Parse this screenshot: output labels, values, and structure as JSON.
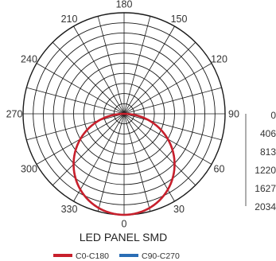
{
  "chart_data": {
    "type": "polar",
    "title": "LED PANEL SMD",
    "angle_labels": [
      "0",
      "30",
      "60",
      "90",
      "120",
      "150",
      "180",
      "210",
      "240",
      "270",
      "300",
      "330"
    ],
    "radial_scale": {
      "labels": [
        "0",
        "406",
        "813",
        "1220",
        "1627",
        "2034"
      ],
      "min": 0,
      "max": 2034
    },
    "rings": 10,
    "spokes_every_deg": 15,
    "grid": true,
    "legend_position": "bottom",
    "series": [
      {
        "name": "C0-C180",
        "color": "#c8202c",
        "peak_intensity": 2034,
        "distribution": "lambertian-cosine"
      },
      {
        "name": "C90-C270",
        "color": "#2a6db5",
        "peak_intensity": 2034,
        "distribution": "lambertian-cosine"
      }
    ]
  }
}
